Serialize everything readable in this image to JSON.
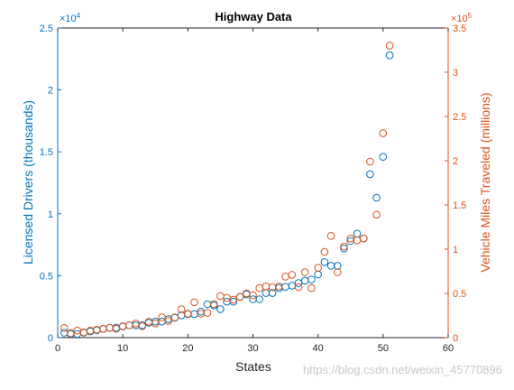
{
  "chart_data": {
    "type": "scatter",
    "title": "Highway Data",
    "xlabel": "States",
    "xlim": [
      0,
      60
    ],
    "xticks": [
      "0",
      "10",
      "20",
      "30",
      "40",
      "50",
      "60"
    ],
    "left_axis": {
      "label": "Licensed Drivers (thousands)",
      "color": "#0072BD",
      "exponent": "×10",
      "exponent_power": "4",
      "ylim": [
        0,
        2.5
      ],
      "ticks": [
        "0",
        "0.5",
        "1",
        "1.5",
        "2",
        "2.5"
      ]
    },
    "right_axis": {
      "label": "Vehicle Miles Traveled (millions)",
      "color": "#D95319",
      "exponent": "×10",
      "exponent_power": "5",
      "ylim": [
        0,
        3.5
      ],
      "ticks": [
        "0",
        "0.5",
        "1",
        "1.5",
        "2",
        "2.5",
        "3",
        "3.5"
      ]
    },
    "series": [
      {
        "axis": "left",
        "color": "#0072BD",
        "x": [
          1,
          2,
          3,
          4,
          5,
          6,
          7,
          8,
          9,
          10,
          11,
          12,
          13,
          14,
          15,
          16,
          17,
          18,
          19,
          20,
          21,
          22,
          23,
          24,
          25,
          26,
          27,
          28,
          29,
          30,
          31,
          32,
          33,
          34,
          35,
          36,
          37,
          38,
          39,
          40,
          41,
          42,
          43,
          44,
          45,
          46,
          47,
          48,
          49,
          50,
          51
        ],
        "y": [
          0.04,
          0.03,
          0.03,
          0.04,
          0.05,
          0.06,
          0.07,
          0.08,
          0.08,
          0.09,
          0.1,
          0.1,
          0.1,
          0.12,
          0.13,
          0.13,
          0.15,
          0.16,
          0.18,
          0.19,
          0.19,
          0.21,
          0.27,
          0.26,
          0.23,
          0.29,
          0.29,
          0.33,
          0.35,
          0.31,
          0.31,
          0.36,
          0.36,
          0.4,
          0.41,
          0.42,
          0.44,
          0.46,
          0.47,
          0.51,
          0.61,
          0.58,
          0.58,
          0.72,
          0.78,
          0.84,
          0.8,
          1.32,
          1.13,
          1.46,
          2.28
        ]
      },
      {
        "axis": "right",
        "color": "#D95319",
        "x": [
          1,
          2,
          3,
          4,
          5,
          6,
          7,
          8,
          9,
          10,
          11,
          12,
          13,
          14,
          15,
          16,
          17,
          18,
          19,
          20,
          21,
          22,
          23,
          24,
          25,
          26,
          27,
          28,
          29,
          30,
          31,
          32,
          33,
          34,
          35,
          36,
          37,
          38,
          39,
          40,
          41,
          42,
          43,
          44,
          45,
          46,
          47,
          48,
          49,
          50,
          51
        ],
        "y": [
          0.11,
          0.05,
          0.08,
          0.06,
          0.08,
          0.09,
          0.1,
          0.11,
          0.1,
          0.13,
          0.14,
          0.16,
          0.13,
          0.18,
          0.16,
          0.23,
          0.19,
          0.23,
          0.32,
          0.27,
          0.4,
          0.27,
          0.28,
          0.38,
          0.47,
          0.45,
          0.43,
          0.46,
          0.5,
          0.48,
          0.56,
          0.58,
          0.57,
          0.58,
          0.69,
          0.71,
          0.57,
          0.74,
          0.56,
          0.79,
          0.97,
          1.15,
          0.74,
          1.03,
          1.12,
          1.1,
          1.12,
          1.99,
          1.39,
          2.31,
          3.3
        ]
      }
    ]
  },
  "watermark": "https://blog.csdn.net/weixin_45770896"
}
